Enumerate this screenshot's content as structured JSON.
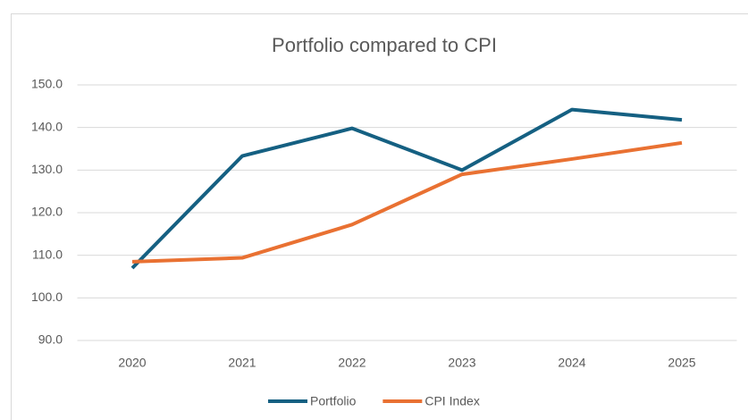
{
  "chart_data": {
    "type": "line",
    "title": "Portfolio compared to CPI",
    "categories": [
      "2020",
      "2021",
      "2022",
      "2023",
      "2024",
      "2025"
    ],
    "series": [
      {
        "name": "Portfolio",
        "color": "#156082",
        "values": [
          107.0,
          133.3,
          139.8,
          130.0,
          144.2,
          141.8
        ]
      },
      {
        "name": "CPI Index",
        "color": "#e97132",
        "values": [
          108.5,
          109.4,
          117.2,
          129.0,
          132.6,
          136.4
        ]
      }
    ],
    "ylim": [
      90,
      150
    ],
    "yticks": [
      {
        "value": 90,
        "label": "90.0"
      },
      {
        "value": 100,
        "label": "100.0"
      },
      {
        "value": 110,
        "label": "110.0"
      },
      {
        "value": 120,
        "label": "120.0"
      },
      {
        "value": 130,
        "label": "130.0"
      },
      {
        "value": 140,
        "label": "140.0"
      },
      {
        "value": 150,
        "label": "150.0"
      }
    ],
    "grid": true,
    "legend": "bottom"
  }
}
